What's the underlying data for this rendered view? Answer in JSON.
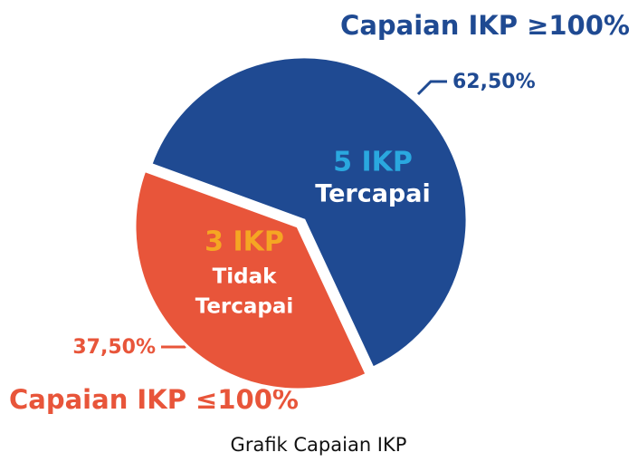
{
  "chart_data": {
    "type": "pie",
    "title": "Grafik Capaian IKP",
    "categories": [
      "Capaian IKP ≥100%",
      "Capaian IKP ≤100%"
    ],
    "values": [
      62.5,
      37.5
    ],
    "value_labels": [
      "62,50%",
      "37,50%"
    ],
    "colors": [
      "#1f4a92",
      "#e8553a"
    ],
    "slice_labels": [
      {
        "count": "5 IKP",
        "status": [
          "Tercapai"
        ]
      },
      {
        "count": "3 IKP",
        "status": [
          "Tidak",
          "Tercapai"
        ]
      }
    ]
  }
}
